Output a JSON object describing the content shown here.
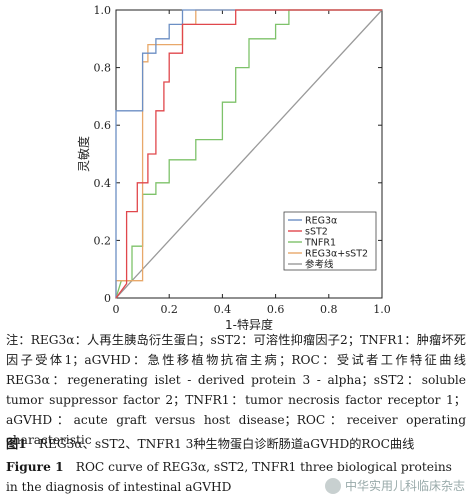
{
  "chart_data": {
    "type": "line",
    "xlabel": "1-特异度",
    "ylabel": "灵敏度",
    "xlim": [
      0,
      1
    ],
    "ylim": [
      0,
      1
    ],
    "x_ticks": [
      "0",
      "0.2",
      "0.4",
      "0.6",
      "0.8",
      "1.0"
    ],
    "y_ticks": [
      "0",
      "0.2",
      "0.4",
      "0.6",
      "0.8",
      "1.0"
    ],
    "x_minor_ticks": [
      "0.2",
      "0.4",
      "0.6",
      "0.8"
    ],
    "y_minor_ticks": [
      "0.2",
      "0.4",
      "0.6",
      "0.8"
    ],
    "grid": false,
    "legend_position": "bottom-right",
    "series": [
      {
        "name": "REG3α",
        "color": "#6c8fc4",
        "points": [
          [
            0,
            0
          ],
          [
            0,
            0.65
          ],
          [
            0.1,
            0.65
          ],
          [
            0.1,
            0.85
          ],
          [
            0.15,
            0.85
          ],
          [
            0.15,
            0.9
          ],
          [
            0.2,
            0.9
          ],
          [
            0.2,
            0.95
          ],
          [
            0.25,
            0.95
          ],
          [
            0.25,
            1.0
          ],
          [
            1,
            1
          ]
        ]
      },
      {
        "name": "sST2",
        "color": "#e0474c",
        "points": [
          [
            0,
            0
          ],
          [
            0.04,
            0.05
          ],
          [
            0.04,
            0.3
          ],
          [
            0.08,
            0.3
          ],
          [
            0.08,
            0.4
          ],
          [
            0.12,
            0.4
          ],
          [
            0.12,
            0.5
          ],
          [
            0.15,
            0.5
          ],
          [
            0.15,
            0.65
          ],
          [
            0.18,
            0.65
          ],
          [
            0.18,
            0.75
          ],
          [
            0.2,
            0.75
          ],
          [
            0.2,
            0.85
          ],
          [
            0.25,
            0.85
          ],
          [
            0.25,
            0.95
          ],
          [
            0.45,
            0.95
          ],
          [
            0.45,
            1.0
          ],
          [
            1,
            1
          ]
        ]
      },
      {
        "name": "TNFR1",
        "color": "#7ec26a",
        "points": [
          [
            0,
            0
          ],
          [
            0.02,
            0.06
          ],
          [
            0.06,
            0.06
          ],
          [
            0.06,
            0.18
          ],
          [
            0.1,
            0.18
          ],
          [
            0.1,
            0.36
          ],
          [
            0.15,
            0.36
          ],
          [
            0.15,
            0.4
          ],
          [
            0.2,
            0.4
          ],
          [
            0.2,
            0.48
          ],
          [
            0.3,
            0.48
          ],
          [
            0.3,
            0.55
          ],
          [
            0.4,
            0.55
          ],
          [
            0.4,
            0.68
          ],
          [
            0.45,
            0.68
          ],
          [
            0.45,
            0.8
          ],
          [
            0.5,
            0.8
          ],
          [
            0.5,
            0.9
          ],
          [
            0.6,
            0.9
          ],
          [
            0.6,
            0.95
          ],
          [
            0.65,
            0.95
          ],
          [
            0.65,
            1.0
          ],
          [
            1,
            1
          ]
        ]
      },
      {
        "name": "REG3α+sST2",
        "color": "#e8a86a",
        "points": [
          [
            0,
            0
          ],
          [
            0,
            0.06
          ],
          [
            0.1,
            0.06
          ],
          [
            0.1,
            0.82
          ],
          [
            0.12,
            0.82
          ],
          [
            0.12,
            0.88
          ],
          [
            0.25,
            0.88
          ],
          [
            0.25,
            0.95
          ],
          [
            0.3,
            0.95
          ],
          [
            0.3,
            1.0
          ],
          [
            1,
            1
          ]
        ]
      },
      {
        "name": "参考线",
        "color": "#9a9a9a",
        "points": [
          [
            0,
            0
          ],
          [
            1,
            1
          ]
        ]
      }
    ]
  },
  "note": "注：REG3α：人再生胰岛衍生蛋白；sST2：可溶性抑瘤因子2；TNFR1：肿瘤坏死因子受体1；aGVHD：急性移植物抗宿主病；ROC：受试者工作特征曲线　REG3α：regenerating islet - derived protein 3 - alpha；sST2：soluble tumor suppressor factor 2；TNFR1：tumor necrosis factor receptor 1；aGVHD：acute graft versus host disease；ROC：receiver operating characteristic",
  "caption_cn_label": "图1",
  "caption_cn": "　REG3α、sST2、TNFR1 3种生物蛋白诊断肠道aGVHD的ROC曲线",
  "caption_en_label": "Figure 1",
  "caption_en": "　ROC curve of REG3α, sST2, TNFR1 three biological proteins in the diagnosis of intestinal aGVHD",
  "watermark": "中华实用儿科临床杂志"
}
